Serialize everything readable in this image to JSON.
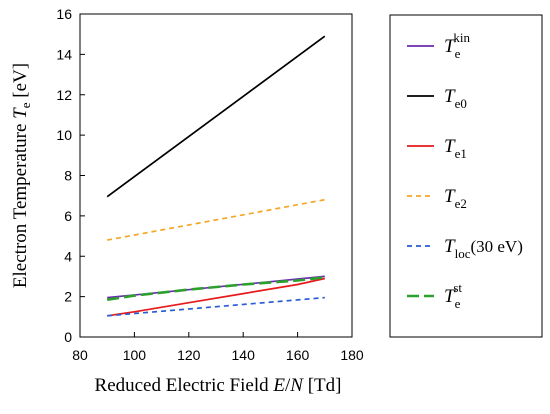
{
  "chart_data": {
    "type": "line",
    "xlabel": {
      "prefix": "Reduced Electric Field ",
      "var1": "E",
      "slash": "/",
      "var2": "N",
      "unit": " [Td]"
    },
    "ylabel": {
      "prefix": "Electron Temperature ",
      "var": "T",
      "sub": "e",
      "unit": " [eV]"
    },
    "xlim": [
      80,
      180
    ],
    "ylim": [
      0,
      16
    ],
    "xticks": [
      "80",
      "100",
      "120",
      "140",
      "160",
      "180"
    ],
    "yticks": [
      "0",
      "2",
      "4",
      "6",
      "8",
      "10",
      "12",
      "14",
      "16"
    ],
    "grid": false,
    "legend_position": "right",
    "series": [
      {
        "name": "T_e^kin",
        "label_main": "T",
        "label_sub": "e",
        "label_sup": "kin",
        "color": "#6a2bb0",
        "dash": "solid",
        "x": [
          90,
          170
        ],
        "y": [
          1.95,
          3.0
        ]
      },
      {
        "name": "T_e0",
        "label_main": "T",
        "label_sub": "e0",
        "label_sup": "",
        "color": "#000000",
        "dash": "solid",
        "x": [
          90,
          170
        ],
        "y": [
          6.95,
          14.9
        ]
      },
      {
        "name": "T_e1",
        "label_main": "T",
        "label_sub": "e1",
        "label_sup": "",
        "color": "#e8191b",
        "dash": "solid",
        "x": [
          90,
          100,
          120,
          140,
          160,
          170
        ],
        "y": [
          1.05,
          1.25,
          1.7,
          2.15,
          2.6,
          2.9
        ]
      },
      {
        "name": "T_e2",
        "label_main": "T",
        "label_sub": "e2",
        "label_sup": "",
        "color": "#f5a623",
        "dash": "dashed",
        "x": [
          90,
          170
        ],
        "y": [
          4.8,
          6.8
        ]
      },
      {
        "name": "T_loc(30 eV)",
        "label_main": "T",
        "label_sub": "loc",
        "label_after": "(30 eV)",
        "label_sup": "",
        "color": "#2a5cd6",
        "dash": "dashed",
        "x": [
          90,
          170
        ],
        "y": [
          1.05,
          1.95
        ]
      },
      {
        "name": "T_e^st",
        "label_main": "T",
        "label_sub": "e",
        "label_sup": "st",
        "color": "#2ca02c",
        "dash": "longdash",
        "x": [
          90,
          100,
          120,
          140,
          160,
          170
        ],
        "y": [
          1.85,
          2.05,
          2.35,
          2.6,
          2.8,
          2.95
        ]
      }
    ]
  }
}
